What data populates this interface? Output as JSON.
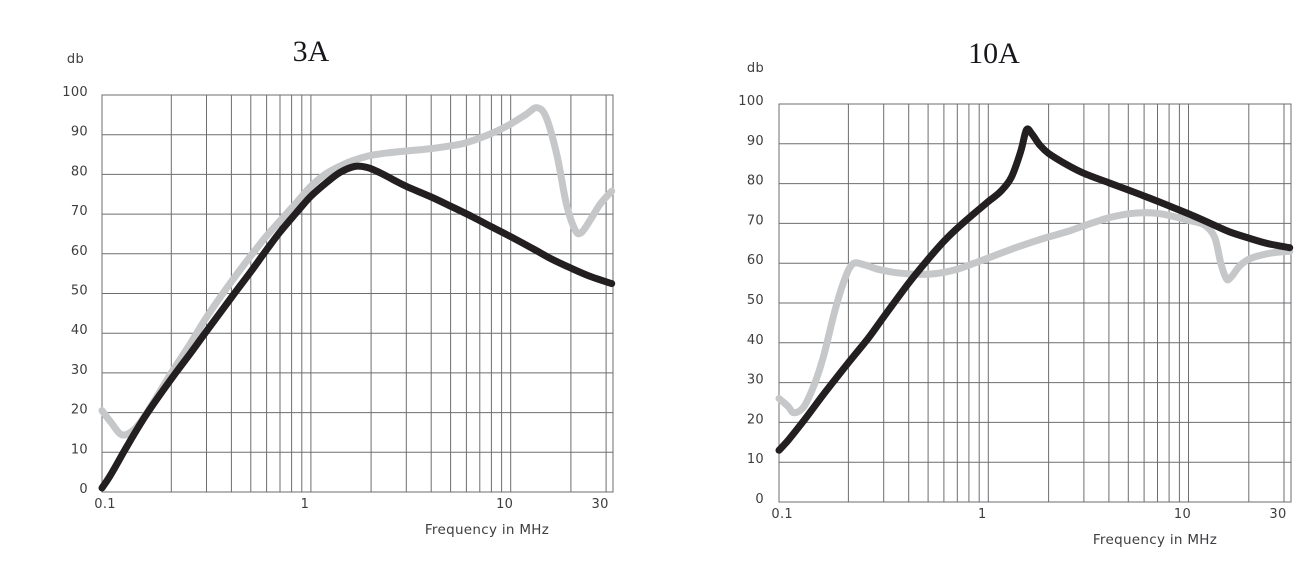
{
  "page": {
    "background": "#ffffff"
  },
  "style": {
    "grid_color": "#6d6e70",
    "label_color": "#3d3e40",
    "title_color": "#17161a",
    "black_curve_color": "#231f20",
    "gray_curve_color": "#c6c7c9"
  },
  "chart_data": [
    {
      "type": "line",
      "title": "3A",
      "ylabel": "db",
      "xlabel": "Frequency in MHz",
      "xscale": "log",
      "xlim": [
        0.09,
        32.5
      ],
      "ylim": [
        0,
        100
      ],
      "grid": true,
      "legend": "none",
      "x_ticks": [
        0.1,
        1,
        10,
        30
      ],
      "x_tick_labels": [
        "0.1",
        "1",
        "10",
        "30"
      ],
      "y_ticks": [
        0,
        10,
        20,
        30,
        40,
        50,
        60,
        70,
        80,
        90,
        100
      ],
      "series": [
        {
          "name": "gray-curve",
          "color": "#c6c7c9",
          "points": [
            [
              0.09,
              20.5
            ],
            [
              0.1,
              17.5
            ],
            [
              0.112,
              14.5
            ],
            [
              0.125,
              15
            ],
            [
              0.14,
              17.5
            ],
            [
              0.16,
              22
            ],
            [
              0.2,
              30
            ],
            [
              0.25,
              37.5
            ],
            [
              0.3,
              44
            ],
            [
              0.4,
              53
            ],
            [
              0.5,
              59.5
            ],
            [
              0.6,
              64.5
            ],
            [
              0.7,
              68.3
            ],
            [
              0.85,
              73
            ],
            [
              1,
              77
            ],
            [
              1.2,
              80.3
            ],
            [
              1.5,
              82.8
            ],
            [
              1.8,
              84.2
            ],
            [
              2.1,
              85
            ],
            [
              2.5,
              85.5
            ],
            [
              3,
              85.9
            ],
            [
              4,
              86.5
            ],
            [
              5,
              87.2
            ],
            [
              6,
              88
            ],
            [
              8,
              90.3
            ],
            [
              10,
              92.7
            ],
            [
              12,
              95.2
            ],
            [
              13.5,
              96.8
            ],
            [
              15,
              94.5
            ],
            [
              17,
              85
            ],
            [
              19,
              72.5
            ],
            [
              21,
              66
            ],
            [
              22.5,
              65.3
            ],
            [
              25,
              68.5
            ],
            [
              28,
              72.5
            ],
            [
              32,
              75.8
            ]
          ]
        },
        {
          "name": "black-curve",
          "color": "#231f20",
          "points": [
            [
              0.09,
              1
            ],
            [
              0.1,
              4.5
            ],
            [
              0.12,
              11.5
            ],
            [
              0.15,
              19.5
            ],
            [
              0.2,
              28.5
            ],
            [
              0.25,
              35
            ],
            [
              0.3,
              40.5
            ],
            [
              0.4,
              49
            ],
            [
              0.5,
              55.5
            ],
            [
              0.6,
              61
            ],
            [
              0.7,
              65.5
            ],
            [
              0.85,
              70.5
            ],
            [
              1,
              74.5
            ],
            [
              1.2,
              78
            ],
            [
              1.4,
              80.5
            ],
            [
              1.65,
              82
            ],
            [
              1.9,
              81.8
            ],
            [
              2.2,
              80.5
            ],
            [
              2.6,
              78.6
            ],
            [
              3,
              77
            ],
            [
              4,
              74.3
            ],
            [
              5,
              72
            ],
            [
              6.5,
              69.2
            ],
            [
              8,
              66.8
            ],
            [
              10,
              64.3
            ],
            [
              13,
              61.2
            ],
            [
              16,
              58.7
            ],
            [
              20,
              56.4
            ],
            [
              25,
              54.3
            ],
            [
              32,
              52.5
            ]
          ]
        }
      ]
    },
    {
      "type": "line",
      "title": "10A",
      "ylabel": "db",
      "xlabel": "Frequency in MHz",
      "xscale": "log",
      "xlim": [
        0.09,
        32.5
      ],
      "ylim": [
        0,
        100
      ],
      "grid": true,
      "legend": "none",
      "x_ticks": [
        0.1,
        1,
        10,
        30
      ],
      "x_tick_labels": [
        "0.1",
        "1",
        "10",
        "30"
      ],
      "y_ticks": [
        0,
        10,
        20,
        30,
        40,
        50,
        60,
        70,
        80,
        90,
        100
      ],
      "series": [
        {
          "name": "gray-curve",
          "color": "#c6c7c9",
          "points": [
            [
              0.09,
              26
            ],
            [
              0.1,
              24
            ],
            [
              0.107,
              22.4
            ],
            [
              0.12,
              24
            ],
            [
              0.135,
              29.5
            ],
            [
              0.15,
              36.5
            ],
            [
              0.17,
              47.5
            ],
            [
              0.19,
              55.5
            ],
            [
              0.21,
              59.8
            ],
            [
              0.24,
              59.6
            ],
            [
              0.28,
              58.5
            ],
            [
              0.35,
              57.6
            ],
            [
              0.45,
              57.2
            ],
            [
              0.55,
              57.4
            ],
            [
              0.7,
              58.5
            ],
            [
              0.85,
              60
            ],
            [
              1,
              61.3
            ],
            [
              1.3,
              63.5
            ],
            [
              1.7,
              65.5
            ],
            [
              2,
              66.6
            ],
            [
              2.5,
              68
            ],
            [
              3,
              69.4
            ],
            [
              4,
              71.4
            ],
            [
              5,
              72.4
            ],
            [
              6,
              72.7
            ],
            [
              7,
              72.5
            ],
            [
              8,
              72
            ],
            [
              10,
              70.8
            ],
            [
              12,
              69.6
            ],
            [
              13.5,
              66.5
            ],
            [
              14.5,
              60
            ],
            [
              15.5,
              56
            ],
            [
              16.5,
              56.8
            ],
            [
              18,
              59.3
            ],
            [
              20,
              61
            ],
            [
              23,
              62
            ],
            [
              27,
              62.7
            ],
            [
              32,
              63
            ]
          ]
        },
        {
          "name": "black-curve",
          "color": "#231f20",
          "points": [
            [
              0.09,
              13
            ],
            [
              0.1,
              15.5
            ],
            [
              0.12,
              20.5
            ],
            [
              0.15,
              27
            ],
            [
              0.2,
              35
            ],
            [
              0.25,
              41
            ],
            [
              0.3,
              46.5
            ],
            [
              0.4,
              55
            ],
            [
              0.5,
              61
            ],
            [
              0.6,
              65.5
            ],
            [
              0.7,
              68.8
            ],
            [
              0.85,
              72.5
            ],
            [
              1,
              75.5
            ],
            [
              1.15,
              78
            ],
            [
              1.3,
              81.5
            ],
            [
              1.45,
              88
            ],
            [
              1.55,
              93.5
            ],
            [
              1.65,
              92.5
            ],
            [
              1.8,
              89.8
            ],
            [
              2,
              87.6
            ],
            [
              2.5,
              84.6
            ],
            [
              3,
              82.6
            ],
            [
              4,
              80.2
            ],
            [
              5,
              78.4
            ],
            [
              6.5,
              76.2
            ],
            [
              8,
              74.4
            ],
            [
              10,
              72.4
            ],
            [
              13,
              69.9
            ],
            [
              16,
              67.9
            ],
            [
              20,
              66.3
            ],
            [
              25,
              64.9
            ],
            [
              32,
              63.9
            ]
          ]
        }
      ]
    }
  ]
}
